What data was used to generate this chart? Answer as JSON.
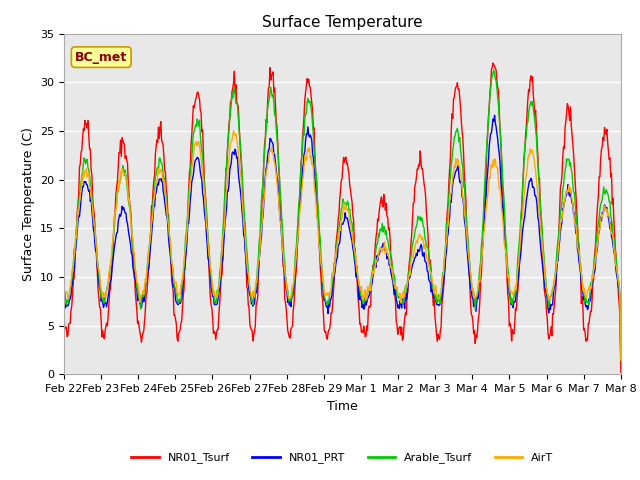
{
  "title": "Surface Temperature",
  "xlabel": "Time",
  "ylabel": "Surface Temperature (C)",
  "ylim": [
    0,
    35
  ],
  "annotation": "BC_met",
  "background_color": "#ffffff",
  "plot_bg_color": "#e8e8e8",
  "grid_color": "#ffffff",
  "series_colors": {
    "NR01_Tsurf": "#ff0000",
    "NR01_PRT": "#0000ff",
    "Arable_Tsurf": "#00cc00",
    "AirT": "#ffaa00"
  },
  "legend_labels": [
    "NR01_Tsurf",
    "NR01_PRT",
    "Arable_Tsurf",
    "AirT"
  ],
  "xtick_labels": [
    "Feb 22",
    "Feb 23",
    "Feb 24",
    "Feb 25",
    "Feb 26",
    "Feb 27",
    "Feb 28",
    "Feb 29",
    "Mar 1",
    "Mar 2",
    "Mar 3",
    "Mar 4",
    "Mar 5",
    "Mar 6",
    "Mar 7",
    "Mar 8"
  ],
  "title_fontsize": 11,
  "axis_fontsize": 9,
  "tick_fontsize": 8,
  "legend_fontsize": 8,
  "annotation_fontsize": 9,
  "linewidth": 1.0,
  "n_days": 15,
  "peaks_red": [
    26,
    24,
    25,
    29,
    30,
    31,
    30,
    22,
    18,
    22,
    30,
    32,
    30,
    27,
    25
  ],
  "peaks_blue": [
    20,
    17,
    20,
    22,
    23,
    24,
    25,
    16,
    13,
    13,
    21,
    26,
    20,
    19,
    17
  ],
  "peaks_green": [
    22,
    21,
    22,
    26,
    29,
    29,
    28,
    18,
    15,
    16,
    25,
    31,
    28,
    22,
    19
  ],
  "peaks_orange": [
    21,
    21,
    21,
    24,
    25,
    23,
    23,
    17,
    13,
    14,
    22,
    22,
    23,
    19,
    17
  ],
  "base_red": 4.0,
  "base_blue": 7.0,
  "base_green": 7.5,
  "base_orange": 8.0
}
